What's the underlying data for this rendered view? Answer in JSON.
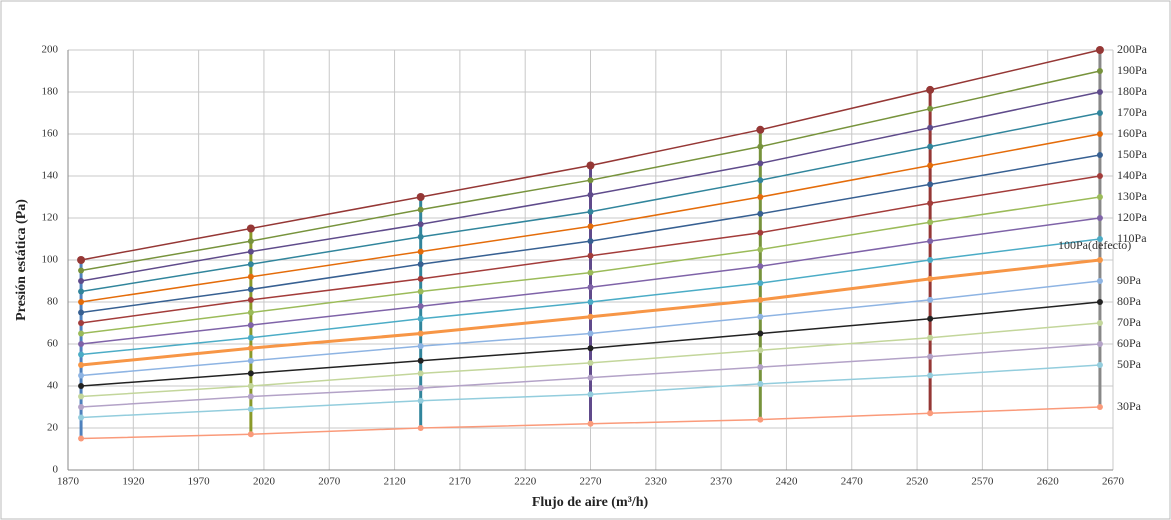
{
  "chart_data": {
    "type": "line",
    "x_label": "Flujo de aire (m³/h)",
    "y_label": "Presión estática (Pa)",
    "x": [
      1880,
      2010,
      2140,
      2270,
      2400,
      2530,
      2660
    ],
    "xlim": [
      1870,
      2670
    ],
    "xticks": [
      1870,
      1920,
      1970,
      2020,
      2070,
      2120,
      2170,
      2220,
      2270,
      2320,
      2370,
      2420,
      2470,
      2520,
      2570,
      2620,
      2670
    ],
    "ylim": [
      0,
      200
    ],
    "yticks": [
      0,
      20,
      40,
      60,
      80,
      100,
      120,
      140,
      160,
      180,
      200
    ],
    "grid": true,
    "series": [
      {
        "name": "200Pa",
        "color": "#953735",
        "values": [
          100,
          115,
          130,
          145,
          162,
          181,
          200
        ]
      },
      {
        "name": "190Pa",
        "color": "#77933c",
        "values": [
          95,
          109,
          124,
          138,
          154,
          172,
          190
        ]
      },
      {
        "name": "180Pa",
        "color": "#5f4b8b",
        "values": [
          90,
          104,
          117,
          131,
          146,
          163,
          180
        ]
      },
      {
        "name": "170Pa",
        "color": "#31859c",
        "values": [
          85,
          98,
          111,
          123,
          138,
          154,
          170
        ]
      },
      {
        "name": "160Pa",
        "color": "#e46c0a",
        "values": [
          80,
          92,
          104,
          116,
          130,
          145,
          160
        ]
      },
      {
        "name": "150Pa",
        "color": "#376092",
        "values": [
          75,
          86,
          98,
          109,
          122,
          136,
          150
        ]
      },
      {
        "name": "140Pa",
        "color": "#a33c3a",
        "values": [
          70,
          81,
          91,
          102,
          113,
          127,
          140
        ]
      },
      {
        "name": "130Pa",
        "color": "#9bbb59",
        "values": [
          65,
          75,
          85,
          94,
          105,
          118,
          130
        ]
      },
      {
        "name": "120Pa",
        "color": "#7f63a8",
        "values": [
          60,
          69,
          78,
          87,
          97,
          109,
          120
        ]
      },
      {
        "name": "110Pa",
        "color": "#4bacc6",
        "values": [
          55,
          63,
          72,
          80,
          89,
          100,
          110
        ]
      },
      {
        "name": "100Pa(defecto)",
        "color": "#f79646",
        "values": [
          50,
          58,
          65,
          73,
          81,
          91,
          100
        ]
      },
      {
        "name": "90Pa",
        "color": "#8eb4e3",
        "values": [
          45,
          52,
          59,
          65,
          73,
          81,
          90
        ]
      },
      {
        "name": "80Pa",
        "color": "#222222",
        "values": [
          40,
          46,
          52,
          58,
          65,
          72,
          80
        ]
      },
      {
        "name": "70Pa",
        "color": "#c3d69b",
        "values": [
          35,
          40,
          46,
          51,
          57,
          63,
          70
        ]
      },
      {
        "name": "60Pa",
        "color": "#b3a2c7",
        "values": [
          30,
          35,
          39,
          44,
          49,
          54,
          60
        ]
      },
      {
        "name": "50Pa",
        "color": "#93cddd",
        "values": [
          25,
          29,
          33,
          36,
          41,
          45,
          50
        ]
      },
      {
        "name": "30Pa",
        "color": "#fa9a7a",
        "values": [
          15,
          17,
          20,
          22,
          24,
          27,
          30
        ]
      }
    ]
  }
}
